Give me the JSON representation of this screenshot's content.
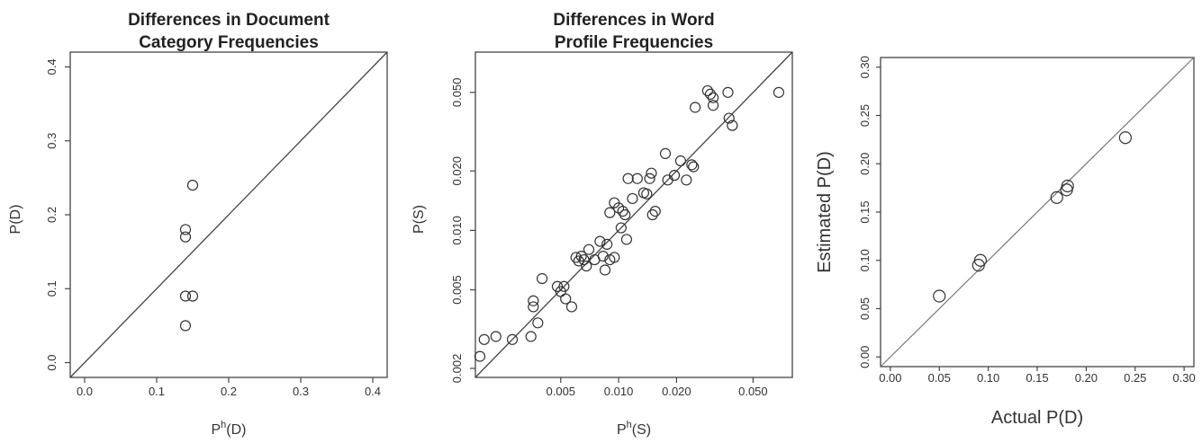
{
  "chart_data": [
    {
      "type": "scatter",
      "title": [
        "Differences in Document",
        "Category Frequencies"
      ],
      "xlabel_base": "P",
      "xlabel_sup": "h",
      "xlabel_rest": "(D)",
      "ylabel": "P(D)",
      "xlim": [
        -0.02,
        0.42
      ],
      "ylim": [
        -0.02,
        0.42
      ],
      "xticks": [
        "0.0",
        "0.1",
        "0.2",
        "0.3",
        "0.4"
      ],
      "yticks": [
        "0.0",
        "0.1",
        "0.2",
        "0.3",
        "0.4"
      ],
      "reference_line": "y = x",
      "points": [
        {
          "x": 0.15,
          "y": 0.24
        },
        {
          "x": 0.14,
          "y": 0.18
        },
        {
          "x": 0.14,
          "y": 0.17
        },
        {
          "x": 0.14,
          "y": 0.09
        },
        {
          "x": 0.15,
          "y": 0.09
        },
        {
          "x": 0.14,
          "y": 0.05
        }
      ]
    },
    {
      "type": "scatter",
      "title": [
        "Differences in Word",
        "Profile Frequencies"
      ],
      "xlabel_base": "P",
      "xlabel_sup": "h",
      "xlabel_rest": "(S)",
      "ylabel": "P(S)",
      "scale": "log",
      "xlim": [
        0.0018,
        0.08
      ],
      "ylim": [
        0.0018,
        0.08
      ],
      "xticks": [
        "0.005",
        "0.010",
        "0.020",
        "0.050"
      ],
      "yticks": [
        "0.002",
        "0.005",
        "0.010",
        "0.020",
        "0.050"
      ],
      "reference_line": "y = x",
      "points": [
        {
          "x": 0.0019,
          "y": 0.0023
        },
        {
          "x": 0.002,
          "y": 0.0028
        },
        {
          "x": 0.0023,
          "y": 0.0029
        },
        {
          "x": 0.0028,
          "y": 0.0028
        },
        {
          "x": 0.0035,
          "y": 0.0029
        },
        {
          "x": 0.0036,
          "y": 0.0041
        },
        {
          "x": 0.0036,
          "y": 0.0044
        },
        {
          "x": 0.0038,
          "y": 0.0034
        },
        {
          "x": 0.004,
          "y": 0.0057
        },
        {
          "x": 0.0048,
          "y": 0.0052
        },
        {
          "x": 0.005,
          "y": 0.0049
        },
        {
          "x": 0.0052,
          "y": 0.0052
        },
        {
          "x": 0.0053,
          "y": 0.0045
        },
        {
          "x": 0.0057,
          "y": 0.0041
        },
        {
          "x": 0.006,
          "y": 0.0073
        },
        {
          "x": 0.0062,
          "y": 0.007
        },
        {
          "x": 0.0064,
          "y": 0.0074
        },
        {
          "x": 0.0066,
          "y": 0.0071
        },
        {
          "x": 0.0068,
          "y": 0.0066
        },
        {
          "x": 0.007,
          "y": 0.008
        },
        {
          "x": 0.0075,
          "y": 0.0071
        },
        {
          "x": 0.008,
          "y": 0.0088
        },
        {
          "x": 0.0083,
          "y": 0.0074
        },
        {
          "x": 0.0085,
          "y": 0.0063
        },
        {
          "x": 0.0087,
          "y": 0.0085
        },
        {
          "x": 0.009,
          "y": 0.0071
        },
        {
          "x": 0.009,
          "y": 0.0123
        },
        {
          "x": 0.0095,
          "y": 0.0073
        },
        {
          "x": 0.0095,
          "y": 0.0138
        },
        {
          "x": 0.01,
          "y": 0.013
        },
        {
          "x": 0.0103,
          "y": 0.0103
        },
        {
          "x": 0.0105,
          "y": 0.0125
        },
        {
          "x": 0.0108,
          "y": 0.012
        },
        {
          "x": 0.011,
          "y": 0.009
        },
        {
          "x": 0.0112,
          "y": 0.0183
        },
        {
          "x": 0.0118,
          "y": 0.0145
        },
        {
          "x": 0.0125,
          "y": 0.0183
        },
        {
          "x": 0.0135,
          "y": 0.0155
        },
        {
          "x": 0.014,
          "y": 0.0153
        },
        {
          "x": 0.0145,
          "y": 0.0183
        },
        {
          "x": 0.0148,
          "y": 0.0195
        },
        {
          "x": 0.015,
          "y": 0.012
        },
        {
          "x": 0.0155,
          "y": 0.0125
        },
        {
          "x": 0.0175,
          "y": 0.0245
        },
        {
          "x": 0.018,
          "y": 0.018
        },
        {
          "x": 0.0195,
          "y": 0.019
        },
        {
          "x": 0.021,
          "y": 0.0225
        },
        {
          "x": 0.0225,
          "y": 0.018
        },
        {
          "x": 0.024,
          "y": 0.0215
        },
        {
          "x": 0.0245,
          "y": 0.021
        },
        {
          "x": 0.025,
          "y": 0.042
        },
        {
          "x": 0.029,
          "y": 0.051
        },
        {
          "x": 0.03,
          "y": 0.049
        },
        {
          "x": 0.031,
          "y": 0.047
        },
        {
          "x": 0.031,
          "y": 0.043
        },
        {
          "x": 0.037,
          "y": 0.05
        },
        {
          "x": 0.0375,
          "y": 0.037
        },
        {
          "x": 0.039,
          "y": 0.034
        },
        {
          "x": 0.068,
          "y": 0.05
        }
      ]
    },
    {
      "type": "scatter",
      "title": [],
      "xlabel": "Actual P(D)",
      "ylabel": "Estimated P(D)",
      "xlim": [
        -0.01,
        0.31
      ],
      "ylim": [
        -0.01,
        0.31
      ],
      "xticks": [
        "0.00",
        "0.05",
        "0.10",
        "0.15",
        "0.20",
        "0.25",
        "0.30"
      ],
      "yticks": [
        "0.00",
        "0.05",
        "0.10",
        "0.15",
        "0.20",
        "0.25",
        "0.30"
      ],
      "reference_line": "y = x",
      "points": [
        {
          "x": 0.05,
          "y": 0.063
        },
        {
          "x": 0.09,
          "y": 0.095
        },
        {
          "x": 0.092,
          "y": 0.1
        },
        {
          "x": 0.17,
          "y": 0.165
        },
        {
          "x": 0.18,
          "y": 0.173
        },
        {
          "x": 0.181,
          "y": 0.177
        },
        {
          "x": 0.24,
          "y": 0.227
        }
      ]
    }
  ]
}
